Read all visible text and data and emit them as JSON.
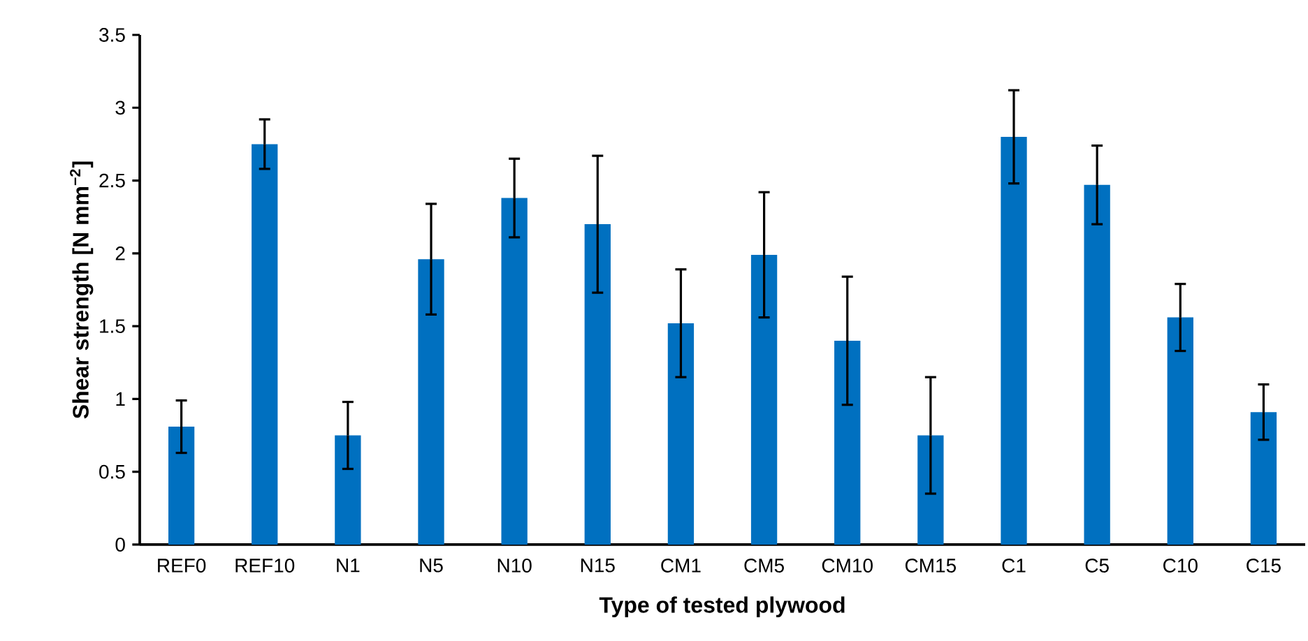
{
  "chart_data": {
    "type": "bar",
    "xlabel": "Type of tested plywood",
    "ylabel": "Shear strength [N mm$^{−2}$]",
    "categories": [
      "REF0",
      "REF10",
      "N1",
      "N5",
      "N10",
      "N15",
      "CM1",
      "CM5",
      "CM10",
      "CM15",
      "C1",
      "C5",
      "C10",
      "C15"
    ],
    "values": [
      0.81,
      2.75,
      0.75,
      1.96,
      2.38,
      2.2,
      1.52,
      1.99,
      1.4,
      0.75,
      2.8,
      2.47,
      1.56,
      0.91
    ],
    "errors": [
      0.18,
      0.17,
      0.23,
      0.38,
      0.27,
      0.47,
      0.37,
      0.43,
      0.44,
      0.4,
      0.32,
      0.27,
      0.23,
      0.19
    ],
    "color": "#0070c0",
    "ylim": [
      0,
      3.5
    ],
    "yticks": [
      0,
      0.5,
      1,
      1.5,
      2,
      2.5,
      3,
      3.5
    ]
  }
}
